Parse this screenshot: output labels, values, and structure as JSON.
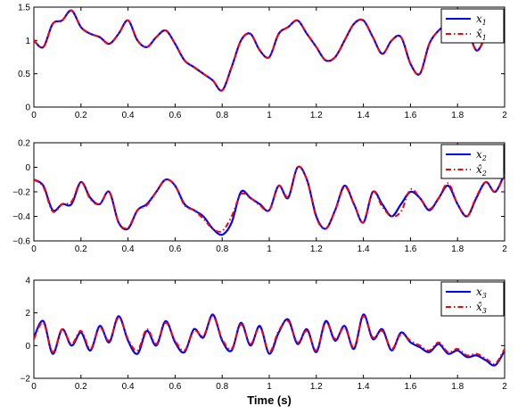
{
  "colors": {
    "actual": "#0000ff",
    "estimate": "#ff0000",
    "axes": "#000000"
  },
  "chart_data": [
    {
      "type": "line",
      "xlabel": "",
      "ylabel": "",
      "xlim": [
        0,
        2
      ],
      "ylim": [
        0,
        1.5
      ],
      "xticks": [
        "0",
        "0.2",
        "0.4",
        "0.6",
        "0.8",
        "1",
        "1.2",
        "1.4",
        "1.6",
        "1.8",
        "2"
      ],
      "yticks": [
        "0",
        "0.5",
        "1",
        "1.5"
      ],
      "grid": false,
      "legend_placement": "top-right",
      "x": [
        0.0,
        0.04,
        0.08,
        0.12,
        0.16,
        0.2,
        0.24,
        0.28,
        0.32,
        0.36,
        0.4,
        0.44,
        0.48,
        0.52,
        0.56,
        0.6,
        0.64,
        0.68,
        0.72,
        0.76,
        0.8,
        0.84,
        0.88,
        0.92,
        0.96,
        1.0,
        1.04,
        1.08,
        1.12,
        1.16,
        1.2,
        1.24,
        1.28,
        1.32,
        1.36,
        1.4,
        1.44,
        1.48,
        1.52,
        1.56,
        1.6,
        1.64,
        1.68,
        1.72,
        1.76,
        1.8,
        1.84,
        1.88,
        1.92,
        1.96,
        2.0
      ],
      "series": [
        {
          "name": "x",
          "sub": "1",
          "style": "solid",
          "values": [
            1.0,
            0.9,
            1.25,
            1.3,
            1.45,
            1.2,
            1.1,
            1.05,
            0.95,
            1.1,
            1.3,
            1.0,
            0.9,
            1.05,
            1.15,
            0.95,
            0.7,
            0.6,
            0.5,
            0.4,
            0.25,
            0.6,
            1.0,
            1.1,
            0.85,
            0.75,
            1.1,
            1.2,
            1.3,
            1.1,
            0.9,
            0.7,
            0.75,
            1.0,
            1.25,
            1.3,
            1.05,
            0.8,
            1.0,
            1.05,
            0.65,
            0.5,
            0.95,
            1.15,
            1.25,
            1.3,
            1.2,
            0.85,
            1.05,
            1.15,
            1.25
          ]
        },
        {
          "name": "x̂",
          "sub": "1",
          "style": "dashed",
          "values": [
            1.0,
            0.9,
            1.25,
            1.3,
            1.45,
            1.2,
            1.1,
            1.05,
            0.95,
            1.1,
            1.3,
            1.0,
            0.9,
            1.05,
            1.15,
            0.95,
            0.7,
            0.6,
            0.5,
            0.4,
            0.25,
            0.6,
            1.0,
            1.1,
            0.85,
            0.75,
            1.1,
            1.2,
            1.3,
            1.1,
            0.9,
            0.7,
            0.75,
            1.0,
            1.25,
            1.3,
            1.05,
            0.8,
            1.0,
            1.05,
            0.65,
            0.5,
            0.95,
            1.15,
            1.25,
            1.3,
            1.2,
            0.85,
            1.05,
            1.15,
            1.25
          ]
        }
      ]
    },
    {
      "type": "line",
      "xlabel": "",
      "ylabel": "",
      "xlim": [
        0,
        2
      ],
      "ylim": [
        -0.6,
        0.2
      ],
      "xticks": [
        "0",
        "0.2",
        "0.4",
        "0.6",
        "0.8",
        "1",
        "1.2",
        "1.4",
        "1.6",
        "1.8",
        "2"
      ],
      "yticks": [
        "−0.6",
        "−0.4",
        "−0.2",
        "0",
        "0.2"
      ],
      "grid": false,
      "legend_placement": "top-right",
      "x": [
        0.0,
        0.04,
        0.08,
        0.12,
        0.16,
        0.2,
        0.24,
        0.28,
        0.32,
        0.36,
        0.4,
        0.44,
        0.48,
        0.52,
        0.56,
        0.6,
        0.64,
        0.68,
        0.72,
        0.76,
        0.8,
        0.84,
        0.88,
        0.92,
        0.96,
        1.0,
        1.04,
        1.08,
        1.12,
        1.16,
        1.2,
        1.24,
        1.28,
        1.32,
        1.36,
        1.4,
        1.44,
        1.48,
        1.52,
        1.56,
        1.6,
        1.64,
        1.68,
        1.72,
        1.76,
        1.8,
        1.84,
        1.88,
        1.92,
        1.96,
        2.0
      ],
      "series": [
        {
          "name": "x",
          "sub": "2",
          "style": "solid",
          "values": [
            -0.1,
            -0.15,
            -0.35,
            -0.3,
            -0.3,
            -0.12,
            -0.25,
            -0.3,
            -0.2,
            -0.45,
            -0.5,
            -0.35,
            -0.3,
            -0.2,
            -0.1,
            -0.15,
            -0.3,
            -0.35,
            -0.4,
            -0.5,
            -0.55,
            -0.45,
            -0.2,
            -0.25,
            -0.3,
            -0.35,
            -0.15,
            -0.25,
            0.0,
            -0.1,
            -0.4,
            -0.5,
            -0.35,
            -0.15,
            -0.3,
            -0.45,
            -0.2,
            -0.3,
            -0.4,
            -0.3,
            -0.2,
            -0.25,
            -0.35,
            -0.25,
            -0.15,
            -0.3,
            -0.4,
            -0.25,
            -0.12,
            -0.2,
            -0.05
          ]
        },
        {
          "name": "x̂",
          "sub": "2",
          "style": "dashed",
          "values": [
            -0.1,
            -0.16,
            -0.36,
            -0.3,
            -0.28,
            -0.12,
            -0.26,
            -0.3,
            -0.2,
            -0.45,
            -0.49,
            -0.35,
            -0.31,
            -0.2,
            -0.1,
            -0.15,
            -0.31,
            -0.35,
            -0.42,
            -0.5,
            -0.52,
            -0.4,
            -0.22,
            -0.25,
            -0.31,
            -0.35,
            -0.15,
            -0.24,
            0.0,
            -0.1,
            -0.41,
            -0.5,
            -0.35,
            -0.16,
            -0.3,
            -0.45,
            -0.2,
            -0.32,
            -0.4,
            -0.36,
            -0.18,
            -0.25,
            -0.34,
            -0.25,
            -0.13,
            -0.3,
            -0.4,
            -0.24,
            -0.12,
            -0.2,
            -0.06
          ]
        }
      ]
    },
    {
      "type": "line",
      "xlabel": "Time (s)",
      "ylabel": "",
      "xlim": [
        0,
        2
      ],
      "ylim": [
        -2,
        4
      ],
      "xticks": [
        "0",
        "0.2",
        "0.4",
        "0.6",
        "0.8",
        "1",
        "1.2",
        "1.4",
        "1.6",
        "1.8",
        "2"
      ],
      "yticks": [
        "−2",
        "0",
        "2",
        "4"
      ],
      "grid": false,
      "legend_placement": "top-right",
      "x": [
        0.0,
        0.04,
        0.08,
        0.12,
        0.16,
        0.2,
        0.24,
        0.28,
        0.32,
        0.36,
        0.4,
        0.44,
        0.48,
        0.52,
        0.56,
        0.6,
        0.64,
        0.68,
        0.72,
        0.76,
        0.8,
        0.84,
        0.88,
        0.92,
        0.96,
        1.0,
        1.04,
        1.08,
        1.12,
        1.16,
        1.2,
        1.24,
        1.28,
        1.32,
        1.36,
        1.4,
        1.44,
        1.48,
        1.52,
        1.56,
        1.6,
        1.64,
        1.68,
        1.72,
        1.76,
        1.8,
        1.84,
        1.88,
        1.92,
        1.96,
        2.0
      ],
      "series": [
        {
          "name": "x",
          "sub": "3",
          "style": "solid",
          "values": [
            0.5,
            1.5,
            -0.5,
            1.0,
            0.0,
            0.8,
            -0.3,
            1.2,
            0.2,
            1.8,
            0.3,
            -0.5,
            0.9,
            0.0,
            1.5,
            0.2,
            -0.4,
            1.0,
            0.5,
            1.9,
            0.3,
            -0.3,
            1.4,
            0.0,
            1.2,
            -0.5,
            0.8,
            1.6,
            0.1,
            1.0,
            -0.4,
            1.5,
            0.3,
            1.2,
            -0.2,
            1.9,
            0.4,
            1.0,
            -0.3,
            0.8,
            0.2,
            -0.1,
            -0.4,
            0.1,
            -0.5,
            -0.3,
            -0.7,
            -0.6,
            -0.9,
            -1.2,
            -0.3
          ]
        },
        {
          "name": "x̂",
          "sub": "3",
          "style": "dashed",
          "values": [
            0.4,
            1.4,
            -0.4,
            1.0,
            0.1,
            0.9,
            -0.2,
            1.1,
            0.3,
            1.7,
            0.4,
            -0.3,
            1.0,
            0.1,
            1.4,
            0.3,
            -0.3,
            0.9,
            0.6,
            1.8,
            0.4,
            -0.2,
            1.3,
            0.1,
            1.1,
            -0.4,
            0.9,
            1.5,
            0.2,
            0.9,
            -0.3,
            1.4,
            0.4,
            1.1,
            -0.1,
            1.8,
            0.5,
            0.9,
            -0.2,
            0.7,
            0.3,
            0.0,
            -0.3,
            0.2,
            -0.4,
            -0.2,
            -0.6,
            -0.5,
            -0.8,
            -1.1,
            -0.2
          ]
        }
      ]
    }
  ]
}
